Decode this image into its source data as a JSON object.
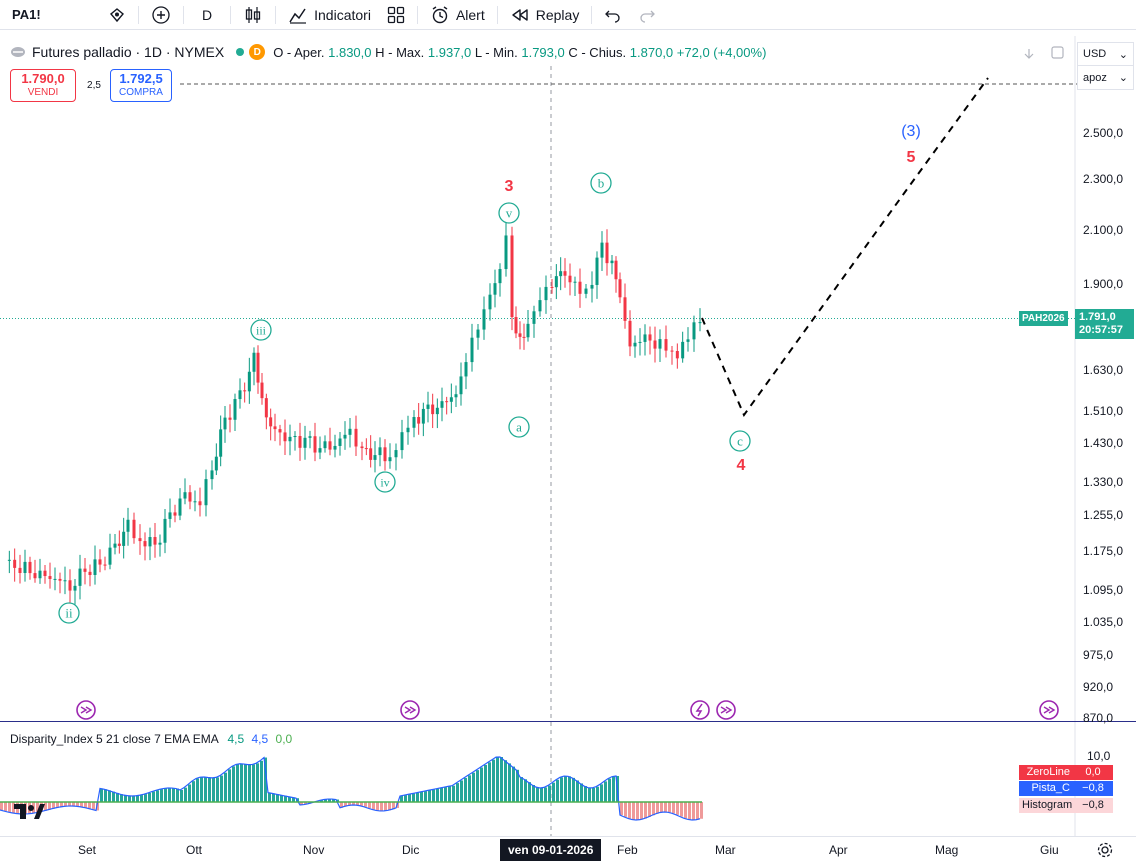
{
  "toolbar": {
    "symbol": "PA1!",
    "interval": "D",
    "indicators_label": "Indicatori",
    "alert_label": "Alert",
    "replay_label": "Replay"
  },
  "legend": {
    "title": "Futures palladio · 1D · NYMEX",
    "badge": "D",
    "open_label": "O - Aper.",
    "open": "1.830,0",
    "high_label": "H - Max.",
    "high": "1.937,0",
    "low_label": "L - Min.",
    "low": "1.793,0",
    "close_label": "C - Chius.",
    "close": "1.870,0",
    "change": "+72,0 (+4,00%)"
  },
  "trade": {
    "sell_price": "1.790,0",
    "sell_label": "VENDI",
    "spread": "2,5",
    "buy_price": "1.792,5",
    "buy_label": "COMPRA"
  },
  "price_axis": {
    "currency": "USD",
    "mode": "apoz",
    "ticks": [
      "2.500,0",
      "2.300,0",
      "2.100,0",
      "1.900,0",
      "1.630,0",
      "1.510,0",
      "1.430,0",
      "1.330,0",
      "1.255,0",
      "1.175,0",
      "1.095,0",
      "1.035,0",
      "975,0",
      "920,0",
      "870,0"
    ],
    "symbol_tag": "PAH2026",
    "last_price": "1.791,0",
    "countdown": "20:57:57"
  },
  "waves": {
    "minor": [
      "ii",
      "iii",
      "iv",
      "v",
      "a",
      "b",
      "c"
    ],
    "major": [
      "3",
      "4",
      "5"
    ],
    "intermediate": "(3)"
  },
  "indicator": {
    "title": "Disparity_Index 5 21 close 7 EMA EMA",
    "v1": "4,5",
    "v2": "4,5",
    "v3": "0,0",
    "scale_top": "10,0",
    "zero_label": "ZeroLine",
    "zero_value": "0,0",
    "pista_label": "Pista_C",
    "pista_value": "−0,8",
    "hist_label": "Histogram",
    "hist_value": "−0,8"
  },
  "time_axis": {
    "labels": [
      "Set",
      "Ott",
      "Nov",
      "Dic",
      "Feb",
      "Mar",
      "Apr",
      "Mag",
      "Giu"
    ],
    "cursor": "ven 09-01-2026"
  },
  "colors": {
    "up": "#089981",
    "down": "#f23645",
    "wave": "#22ab94",
    "major": "#f23645",
    "intermediate": "#2962ff"
  }
}
